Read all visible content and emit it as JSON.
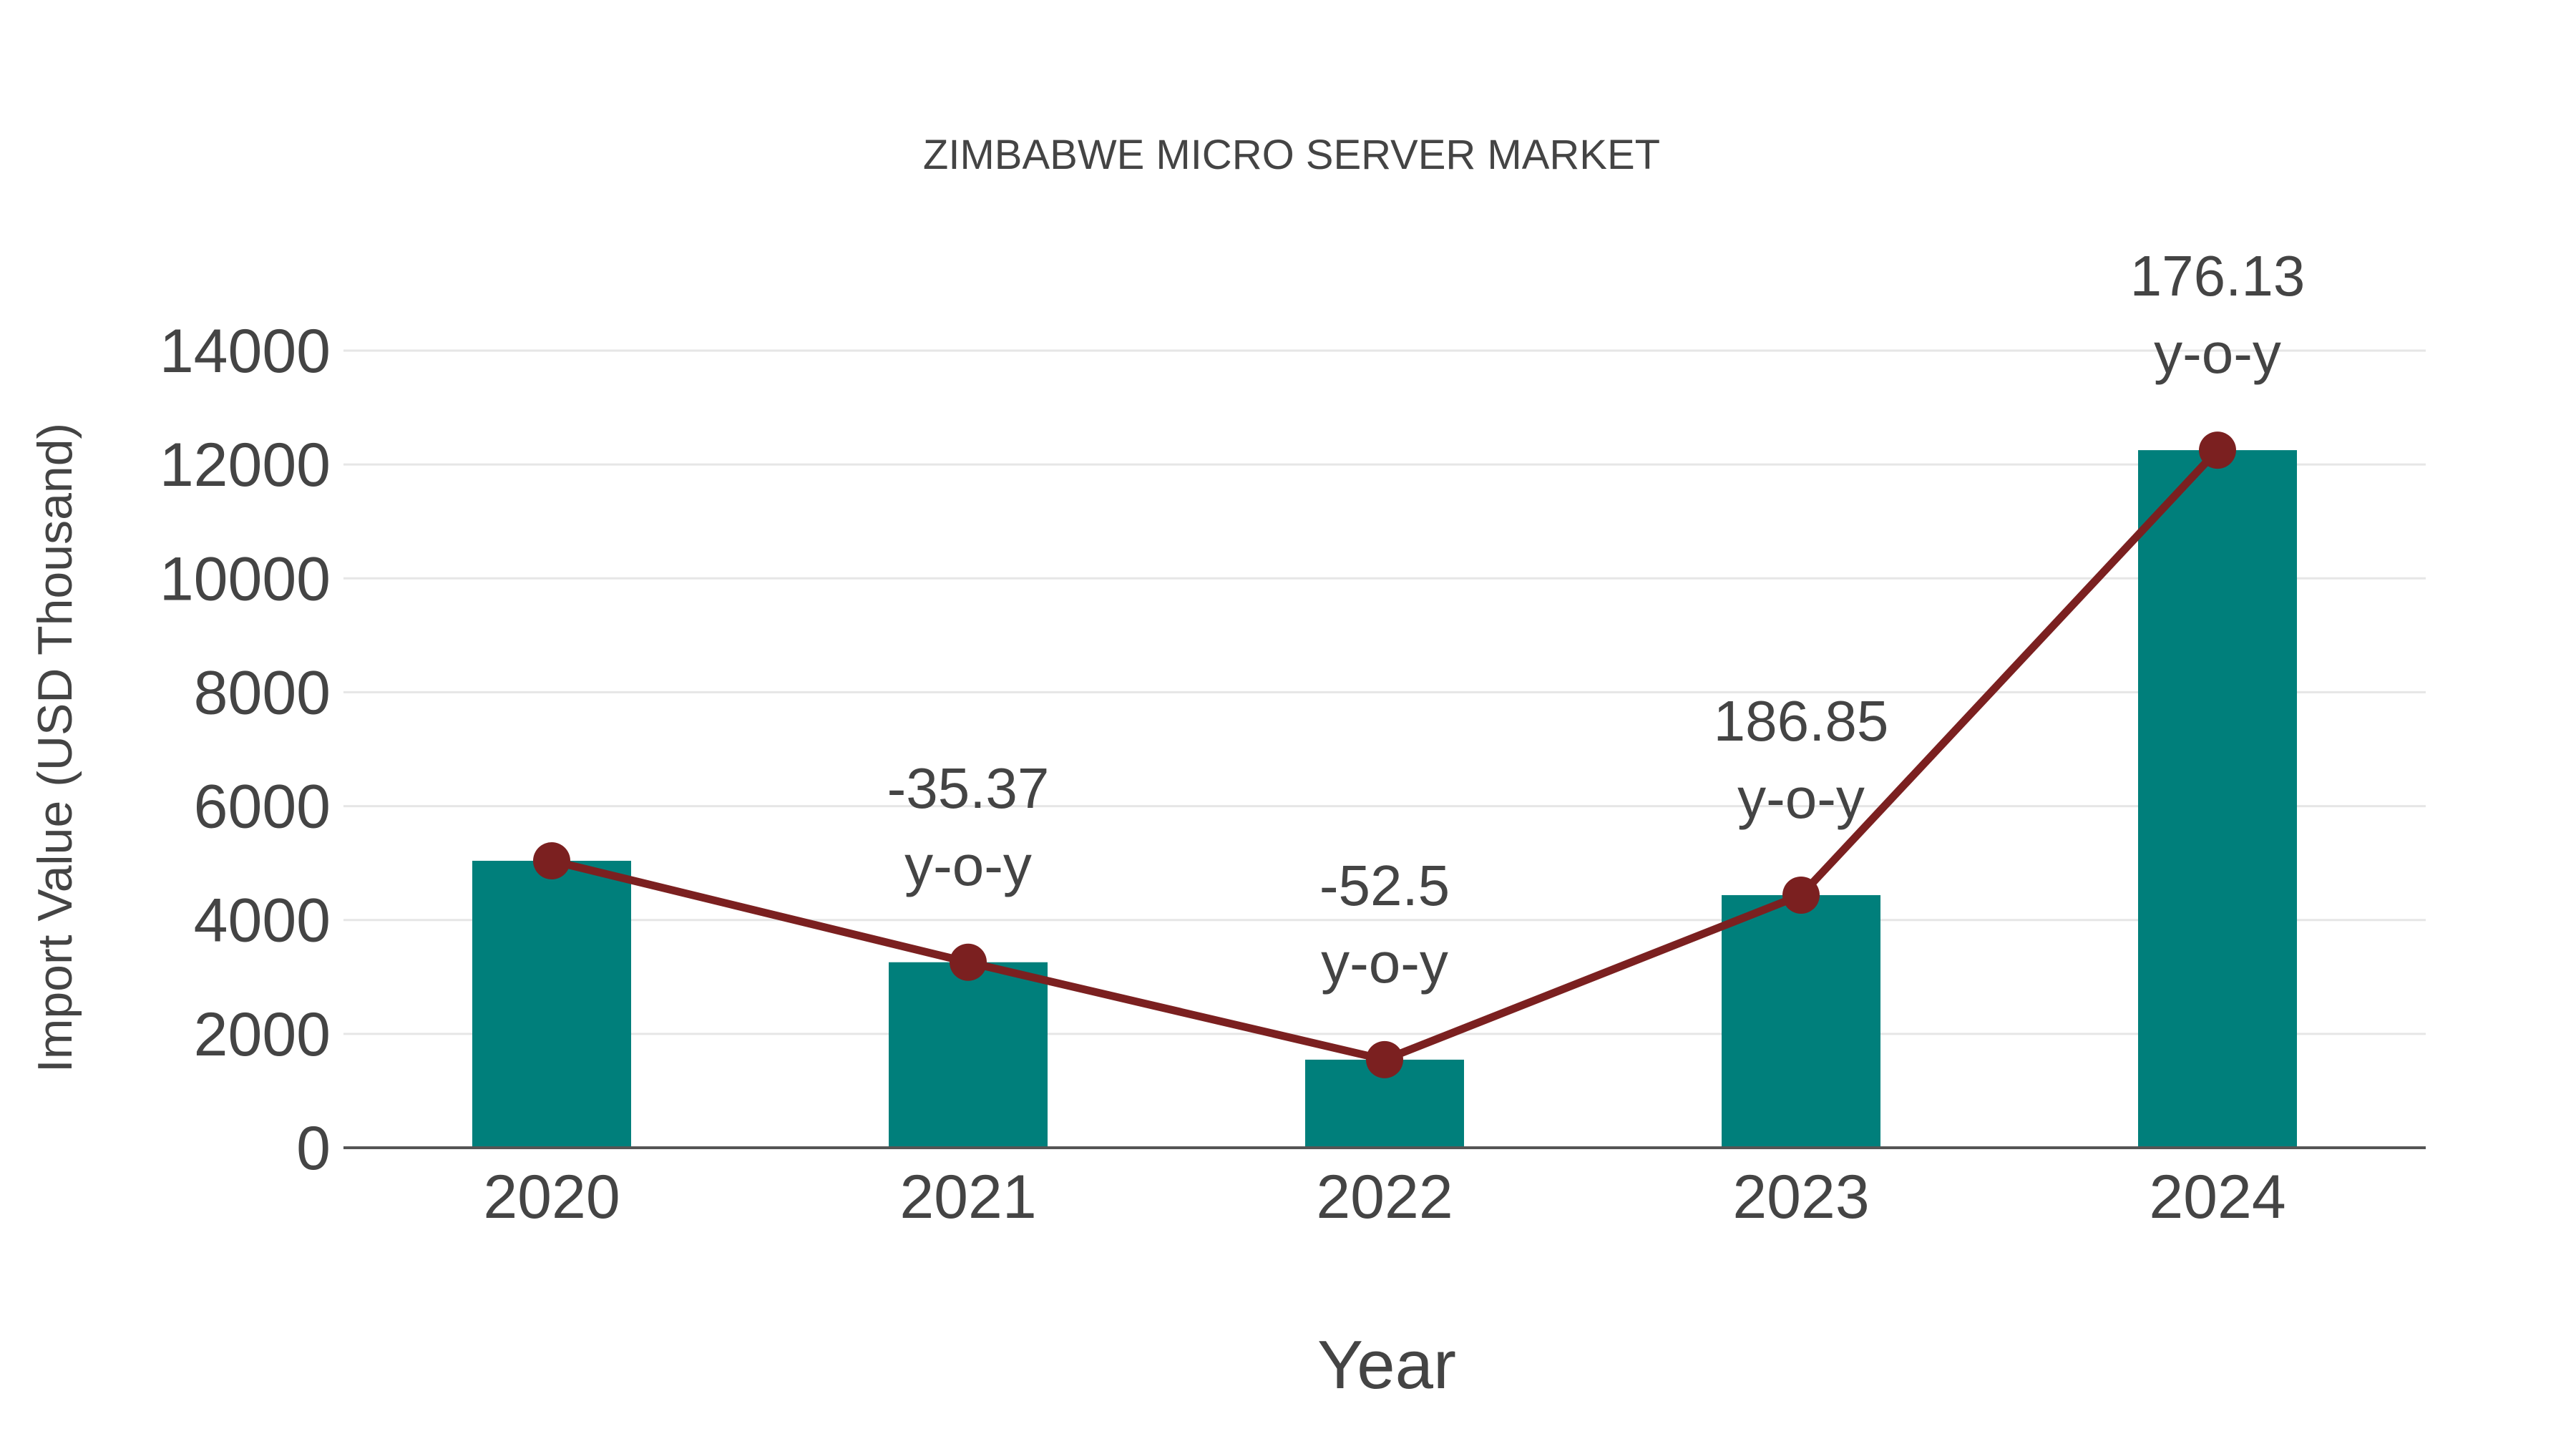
{
  "chart_data": {
    "type": "bar+line",
    "title": "ZIMBABWE MICRO SERVER MARKET",
    "xlabel": "Year",
    "ylabel": "Import Value (USD Thousand)",
    "categories": [
      "2020",
      "2021",
      "2022",
      "2023",
      "2024"
    ],
    "series": [
      {
        "name": "Import Value",
        "type": "bar",
        "color": "#007f7b",
        "values": [
          5040,
          3258,
          1547,
          4437,
          12252
        ]
      },
      {
        "name": "Import Value trend",
        "type": "line",
        "color": "#7b2020",
        "values": [
          5040,
          3258,
          1547,
          4437,
          12252
        ]
      }
    ],
    "annotations": [
      {
        "category": "2021",
        "value": "-35.37",
        "suffix": "y-o-y"
      },
      {
        "category": "2022",
        "value": "-52.5",
        "suffix": "y-o-y"
      },
      {
        "category": "2023",
        "value": "186.85",
        "suffix": "y-o-y"
      },
      {
        "category": "2024",
        "value": "176.13",
        "suffix": "y-o-y"
      }
    ],
    "yticks": [
      0,
      2000,
      4000,
      6000,
      8000,
      10000,
      12000,
      14000
    ],
    "ylim": [
      0,
      14000
    ],
    "grid": true,
    "legend": "none"
  },
  "labels": {
    "title": "ZIMBABWE MICRO SERVER MARKET",
    "xlabel": "Year",
    "ylabel": "Import Value (USD Thousand)"
  }
}
